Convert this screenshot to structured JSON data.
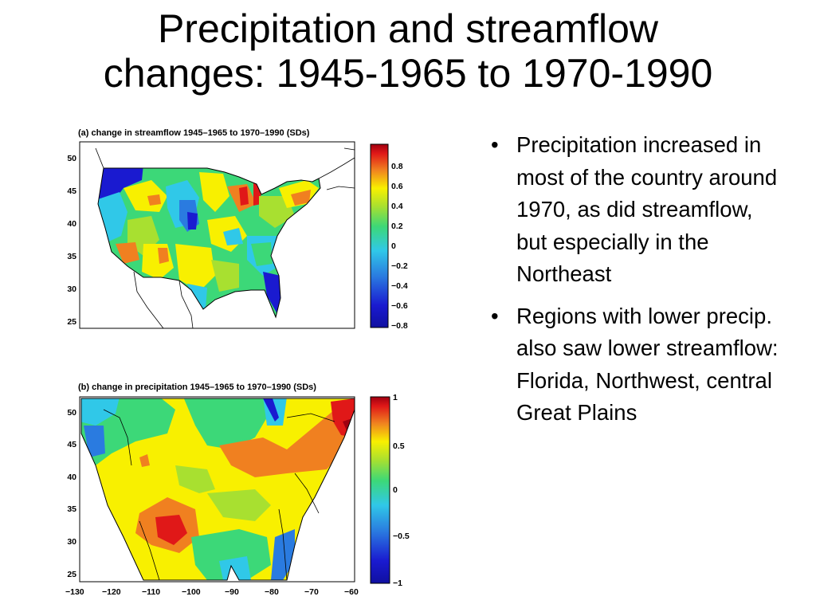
{
  "slide": {
    "title_line1": "Precipitation and streamflow",
    "title_line2": "changes: 1945-1965 to 1970-1990",
    "bullets": [
      "Precipitation increased in most of the country around 1970, as did streamflow, but especially in the Northeast",
      "Regions with lower precip. also saw lower streamflow: Florida, Northwest, central Great Plains"
    ]
  },
  "figure_a": {
    "title": "(a) change in streamflow 1945–1965 to 1970–1990 (SDs)",
    "y_ticks": [
      "50",
      "45",
      "40",
      "35",
      "30",
      "25"
    ],
    "colorbar_ticks": [
      "0.8",
      "0.6",
      "0.4",
      "0.2",
      "0",
      "−0.2",
      "−0.4",
      "−0.6",
      "−0.8"
    ]
  },
  "figure_b": {
    "title": "(b) change in precipitation 1945–1965 to 1970–1990 (SDs)",
    "y_ticks": [
      "50",
      "45",
      "40",
      "35",
      "30",
      "25"
    ],
    "x_ticks": [
      "−130",
      "−120",
      "−110",
      "−100",
      "−90",
      "−80",
      "−70",
      "−60"
    ],
    "colorbar_ticks": [
      "1",
      "0.5",
      "0",
      "−0.5",
      "−1"
    ]
  },
  "colors": {
    "deep_blue": "#1a1ad0",
    "blue": "#2a7be0",
    "cyan": "#30c8e8",
    "green": "#3cd878",
    "light_green": "#a8e030",
    "yellow": "#f8f000",
    "orange": "#f08020",
    "red": "#e01818",
    "dark_red": "#a00010"
  }
}
